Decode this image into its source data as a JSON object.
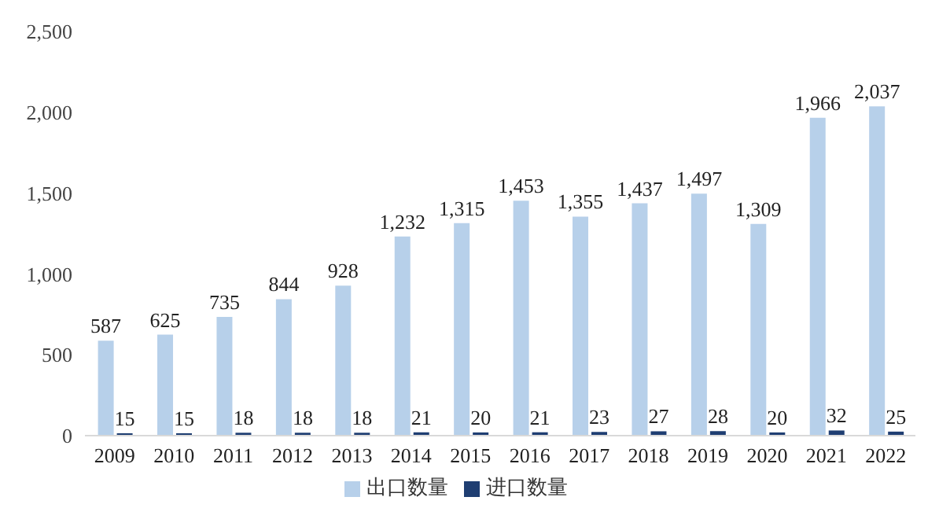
{
  "chart_data": {
    "type": "bar",
    "categories": [
      "2009",
      "2010",
      "2011",
      "2012",
      "2013",
      "2014",
      "2015",
      "2016",
      "2017",
      "2018",
      "2019",
      "2020",
      "2021",
      "2022"
    ],
    "series": [
      {
        "name": "出口数量",
        "color": "#b7d0ea",
        "values": [
          587,
          625,
          735,
          844,
          928,
          1232,
          1315,
          1453,
          1355,
          1437,
          1497,
          1309,
          1966,
          2037
        ],
        "value_labels": [
          "587",
          "625",
          "735",
          "844",
          "928",
          "1,232",
          "1,315",
          "1,453",
          "1,355",
          "1,437",
          "1,497",
          "1,309",
          "1,966",
          "2,037"
        ]
      },
      {
        "name": "进口数量",
        "color": "#1f3e72",
        "values": [
          15,
          15,
          18,
          18,
          18,
          21,
          20,
          21,
          23,
          27,
          28,
          20,
          32,
          25
        ],
        "value_labels": [
          "15",
          "15",
          "18",
          "18",
          "18",
          "21",
          "20",
          "21",
          "23",
          "27",
          "28",
          "20",
          "32",
          "25"
        ]
      }
    ],
    "ylim": [
      0,
      2500
    ],
    "yticks": [
      0,
      500,
      {
        "value": 1000,
        "label": "1,000"
      },
      {
        "value": 1500,
        "label": "1,500"
      },
      {
        "value": 2000,
        "label": "2,000"
      },
      {
        "value": 2500,
        "label": "2,500"
      }
    ],
    "legend": "bottom"
  }
}
